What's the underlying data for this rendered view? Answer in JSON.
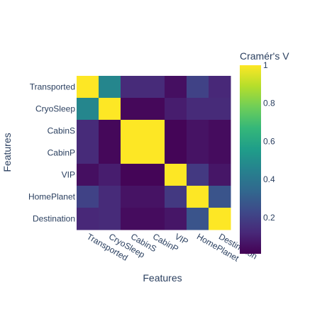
{
  "chart_data": {
    "type": "heatmap",
    "title": "",
    "xlabel": "Features",
    "ylabel": "Features",
    "x_categories": [
      "Transported",
      "CryoSleep",
      "CabinS",
      "CabinP",
      "VIP",
      "HomePlanet",
      "Destination"
    ],
    "y_categories": [
      "Transported",
      "CryoSleep",
      "CabinS",
      "CabinP",
      "VIP",
      "HomePlanet",
      "Destination"
    ],
    "values": [
      [
        1.0,
        0.46,
        0.12,
        0.12,
        0.04,
        0.2,
        0.11
      ],
      [
        0.46,
        1.0,
        0.02,
        0.02,
        0.08,
        0.12,
        0.12
      ],
      [
        0.12,
        0.02,
        1.0,
        1.0,
        0.01,
        0.05,
        0.03
      ],
      [
        0.12,
        0.02,
        1.0,
        1.0,
        0.01,
        0.05,
        0.03
      ],
      [
        0.04,
        0.08,
        0.01,
        0.01,
        1.0,
        0.17,
        0.06
      ],
      [
        0.2,
        0.12,
        0.05,
        0.05,
        0.17,
        1.0,
        0.26
      ],
      [
        0.11,
        0.12,
        0.03,
        0.03,
        0.06,
        0.26,
        1.0
      ]
    ],
    "colorscale": "Viridis",
    "zlim": [
      0,
      1
    ],
    "colorbar": {
      "title": "Cramér's V",
      "tickvals": [
        0.2,
        0.4,
        0.6,
        0.8,
        1
      ],
      "ticktext": [
        "0.2",
        "0.4",
        "0.6",
        "0.8",
        "1"
      ]
    },
    "grid": false,
    "legend": "colorbar-right"
  }
}
